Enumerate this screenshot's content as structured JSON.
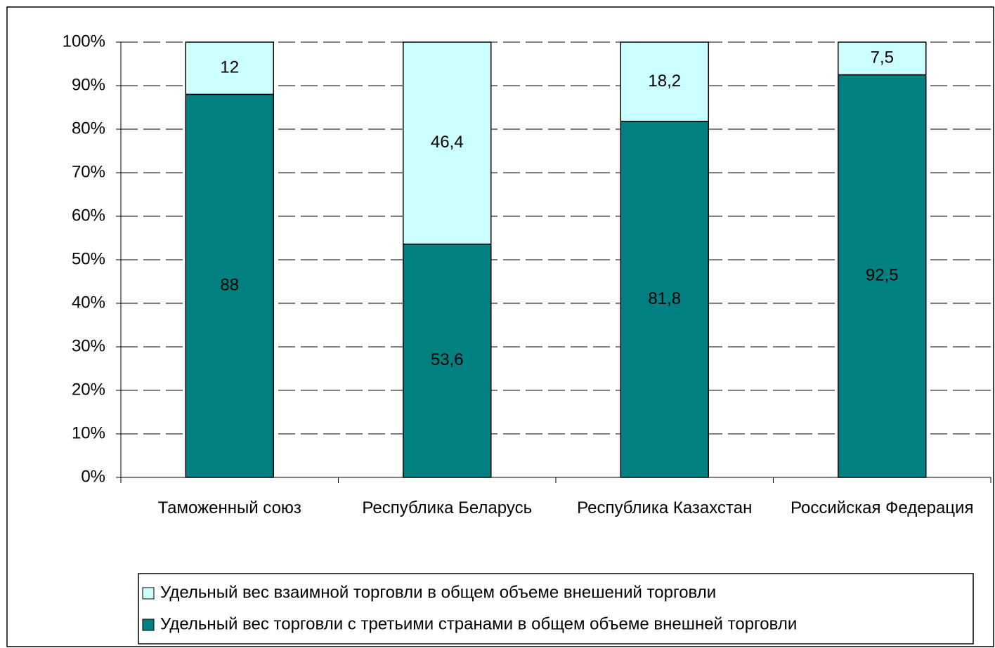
{
  "chart_data": {
    "type": "stacked_bar",
    "categories": [
      "Таможенный союз",
      "Республика Беларусь",
      "Республика Казахстан",
      "Российская Федерация"
    ],
    "series": [
      {
        "name": "Удельный вес взаимной торговли в общем объеме внешений торговли",
        "color": "#ccffff",
        "values": [
          12,
          46.4,
          18.2,
          7.5
        ],
        "value_labels": [
          "12",
          "46,4",
          "18,2",
          "7,5"
        ]
      },
      {
        "name": "Удельный вес торговли с третьими странами в общем объеме внешней торговли",
        "color": "#008080",
        "values": [
          88,
          53.6,
          81.8,
          92.5
        ],
        "value_labels": [
          "88",
          "53,6",
          "81,8",
          "92,5"
        ]
      }
    ],
    "ylim": [
      0,
      100
    ],
    "yticks": [
      {
        "value": 0,
        "label": "0%"
      },
      {
        "value": 10,
        "label": "10%"
      },
      {
        "value": 20,
        "label": "20%"
      },
      {
        "value": 30,
        "label": "30%"
      },
      {
        "value": 40,
        "label": "40%"
      },
      {
        "value": 50,
        "label": "50%"
      },
      {
        "value": 60,
        "label": "60%"
      },
      {
        "value": 70,
        "label": "70%"
      },
      {
        "value": 80,
        "label": "80%"
      },
      {
        "value": 90,
        "label": "90%"
      },
      {
        "value": 100,
        "label": "100%"
      }
    ],
    "grid": true,
    "legend": "bottom"
  }
}
